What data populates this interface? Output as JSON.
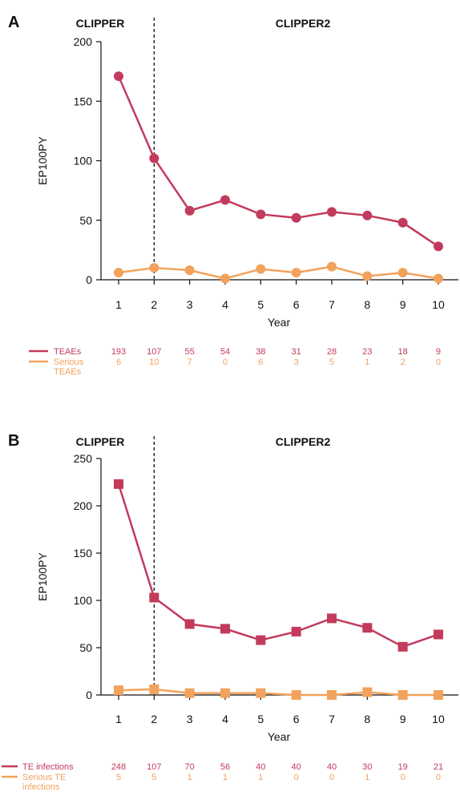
{
  "colors": {
    "teae": "#c23b5c",
    "serious": "#f2a25c",
    "axis": "#111111"
  },
  "chart_data": [
    {
      "panel_label": "A",
      "type": "line",
      "marker": "circle",
      "xlabel": "Year",
      "ylabel": "EP100PY",
      "ylim": [
        0,
        200
      ],
      "yticks": [
        "0",
        "50",
        "100",
        "150",
        "200"
      ],
      "categories": [
        "1",
        "2",
        "3",
        "4",
        "5",
        "6",
        "7",
        "8",
        "9",
        "10"
      ],
      "divider_after_x": 2,
      "study_labels": [
        "CLIPPER",
        "CLIPPER2"
      ],
      "series": [
        {
          "name": "TEAEs",
          "values": [
            171,
            102,
            58,
            67,
            55,
            52,
            57,
            54,
            48,
            28
          ]
        },
        {
          "name": "Serious TEAEs",
          "values": [
            6,
            10,
            8,
            1,
            9,
            6,
            11,
            3,
            6,
            1
          ]
        }
      ],
      "counts_table": [
        {
          "label_lines": [
            "TEAEs"
          ],
          "values": [
            "193",
            "107",
            "55",
            "54",
            "38",
            "31",
            "28",
            "23",
            "18",
            "9"
          ]
        },
        {
          "label_lines": [
            "Serious",
            "TEAEs"
          ],
          "values": [
            "6",
            "10",
            "7",
            "0",
            "6",
            "3",
            "5",
            "1",
            "2",
            "0"
          ]
        }
      ]
    },
    {
      "panel_label": "B",
      "type": "line",
      "marker": "square",
      "xlabel": "Year",
      "ylabel": "EP100PY",
      "ylim": [
        0,
        250
      ],
      "yticks": [
        "0",
        "50",
        "100",
        "150",
        "200",
        "250"
      ],
      "categories": [
        "1",
        "2",
        "3",
        "4",
        "5",
        "6",
        "7",
        "8",
        "9",
        "10"
      ],
      "divider_after_x": 2,
      "study_labels": [
        "CLIPPER",
        "CLIPPER2"
      ],
      "series": [
        {
          "name": "TE infections",
          "values": [
            223,
            103,
            75,
            70,
            58,
            67,
            81,
            71,
            51,
            64
          ]
        },
        {
          "name": "Serious TE infections",
          "values": [
            5,
            6,
            2,
            2,
            2,
            0,
            0,
            3,
            0,
            0
          ]
        }
      ],
      "counts_table": [
        {
          "label_lines": [
            "TE infections"
          ],
          "values": [
            "248",
            "107",
            "70",
            "56",
            "40",
            "40",
            "40",
            "30",
            "19",
            "21"
          ]
        },
        {
          "label_lines": [
            "Serious TE",
            "infections"
          ],
          "values": [
            "5",
            "5",
            "1",
            "1",
            "1",
            "0",
            "0",
            "1",
            "0",
            "0"
          ]
        }
      ]
    }
  ]
}
